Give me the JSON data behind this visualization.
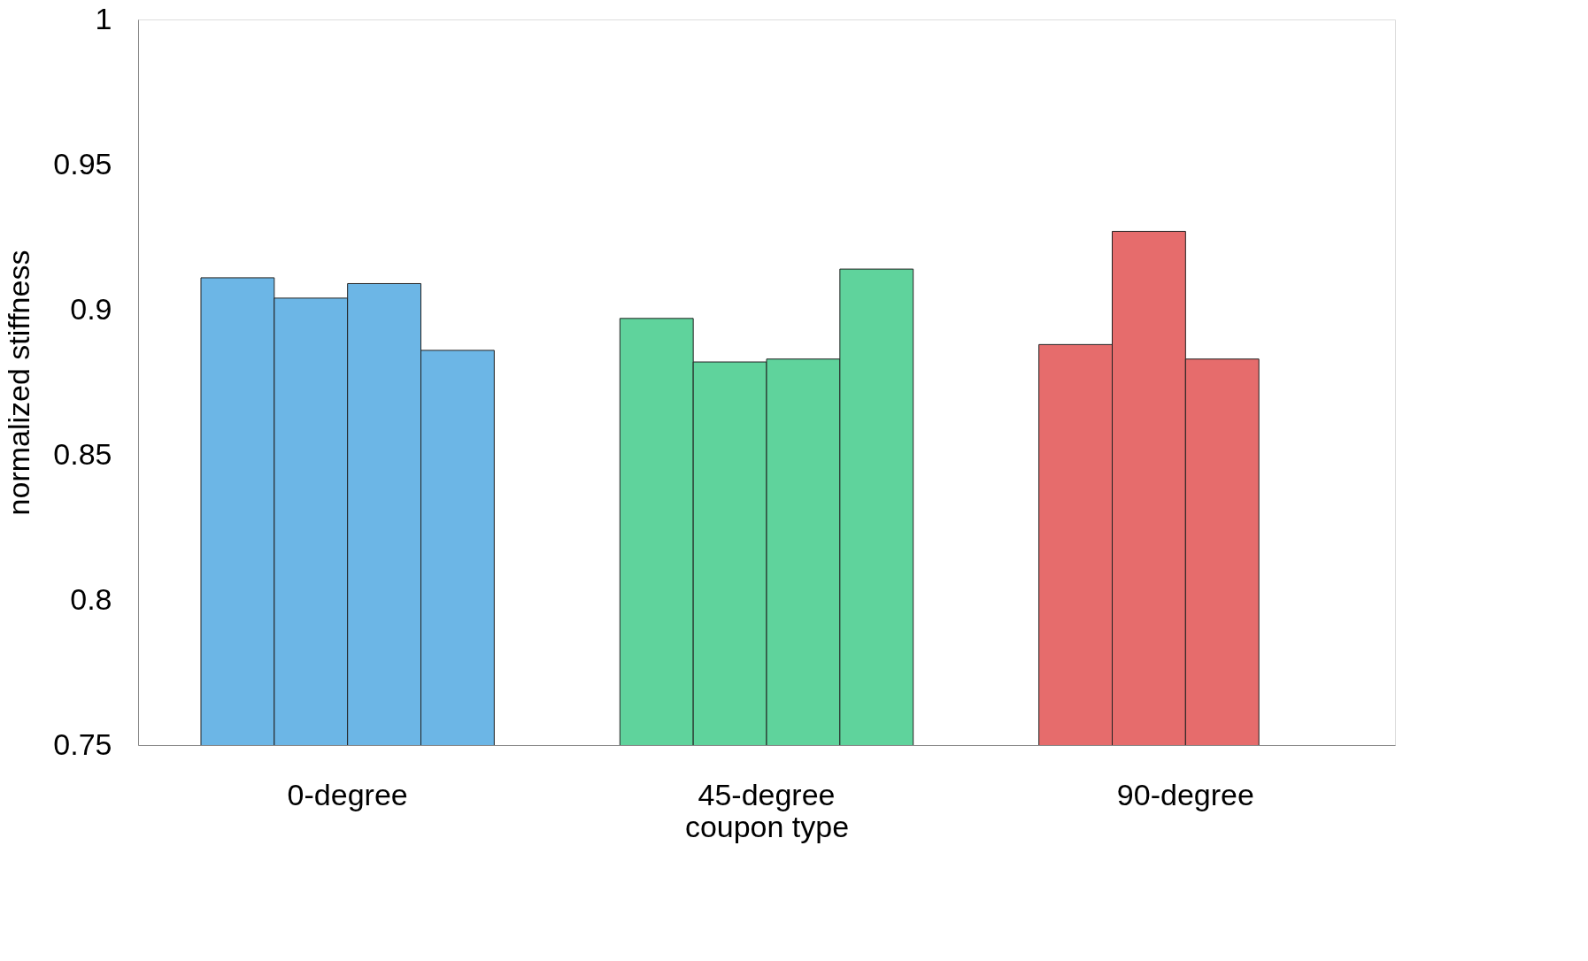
{
  "chart_data": {
    "type": "bar",
    "xlabel": "coupon type",
    "ylabel": "normalized  stiffness",
    "categories": [
      "0-degree",
      "45-degree",
      "90-degree"
    ],
    "series": [
      {
        "colors": [
          "#6cb6e6",
          "#5fd39c",
          "#e66c6c"
        ],
        "values": [
          0.911,
          0.897,
          0.888
        ]
      },
      {
        "colors": [
          "#6cb6e6",
          "#5fd39c",
          "#e66c6c"
        ],
        "values": [
          0.904,
          0.882,
          0.927
        ]
      },
      {
        "colors": [
          "#6cb6e6",
          "#5fd39c",
          "#e66c6c"
        ],
        "values": [
          0.909,
          0.883,
          0.883
        ]
      },
      {
        "colors": [
          "#6cb6e6",
          "#5fd39c",
          null
        ],
        "values": [
          0.886,
          0.914,
          null
        ]
      }
    ],
    "ylim": [
      0.75,
      1
    ],
    "yticks": [
      0.75,
      0.8,
      0.85,
      0.9,
      0.95,
      1
    ],
    "grid": false
  }
}
